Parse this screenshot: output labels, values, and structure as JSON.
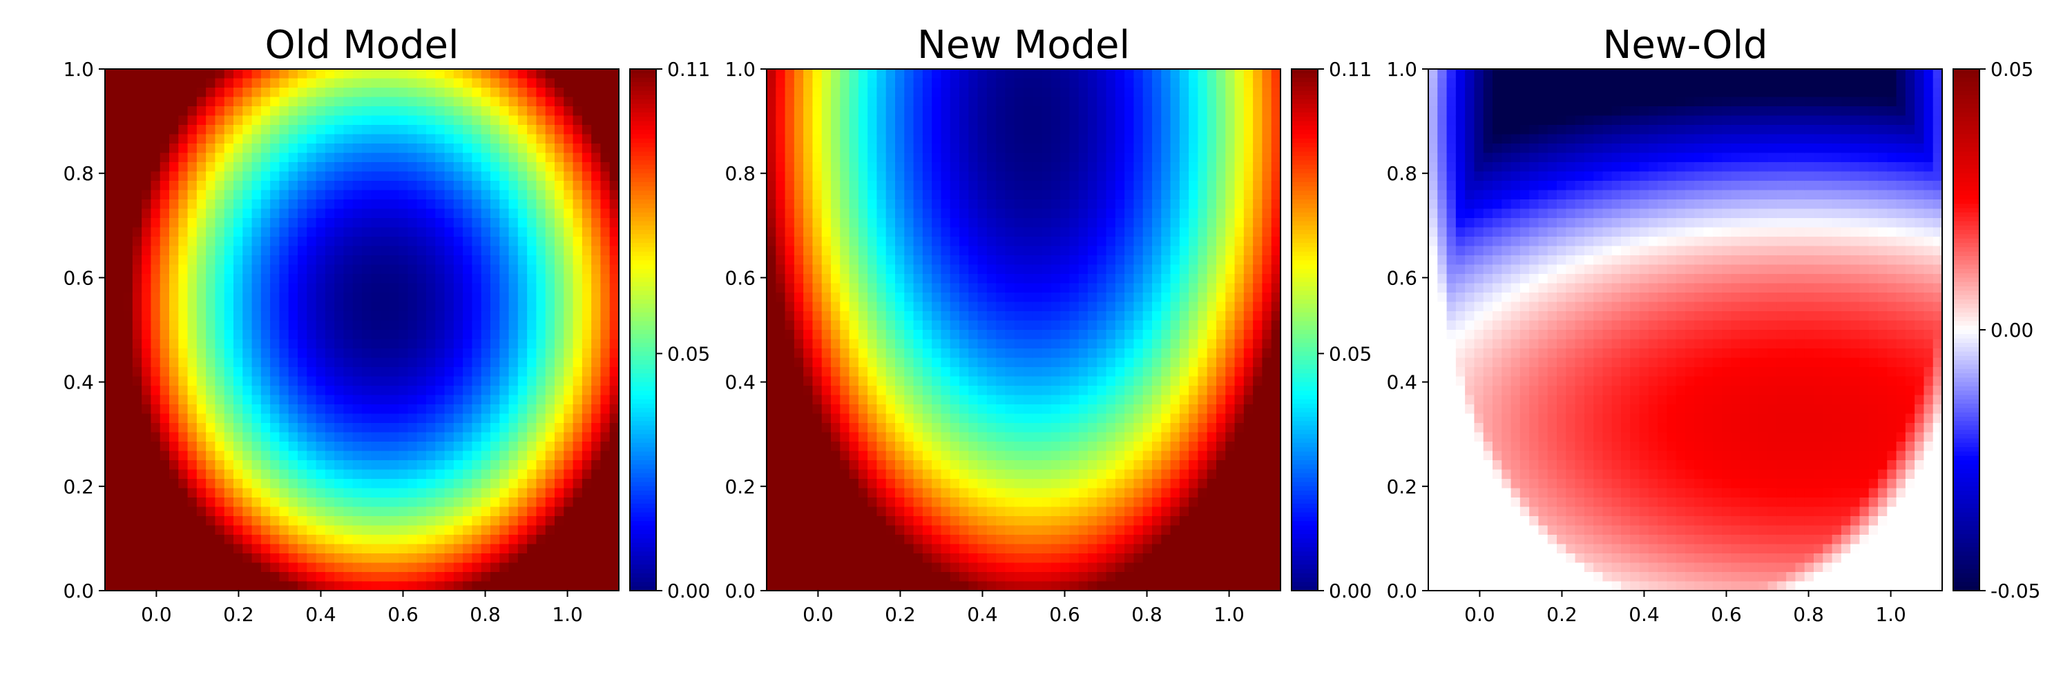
{
  "chart_data": [
    {
      "type": "heatmap",
      "title": "Old Model",
      "colormap": "jet",
      "xlim": [
        -0.125,
        1.125
      ],
      "ylim": [
        0,
        1
      ],
      "x_ticks": [
        "0.0",
        "0.2",
        "0.4",
        "0.6",
        "0.8",
        "1.0"
      ],
      "y_ticks": [
        "0.0",
        "0.2",
        "0.4",
        "0.6",
        "0.8",
        "1.0"
      ],
      "colorbar": {
        "range": [
          0,
          0.11
        ],
        "ticks": [
          "0.00",
          "0.05",
          "0.11"
        ]
      },
      "field": {
        "kind": "bowl",
        "cx": 0.55,
        "cy": 0.55,
        "sx": 0.62,
        "sy": 0.58,
        "vmin": 0.0,
        "vmax": 0.11
      }
    },
    {
      "type": "heatmap",
      "title": "New Model",
      "colormap": "jet",
      "xlim": [
        -0.125,
        1.125
      ],
      "ylim": [
        0,
        1
      ],
      "x_ticks": [
        "0.0",
        "0.2",
        "0.4",
        "0.6",
        "0.8",
        "1.0"
      ],
      "y_ticks": [
        "0.0",
        "0.2",
        "0.4",
        "0.6",
        "0.8",
        "1.0"
      ],
      "colorbar": {
        "range": [
          0,
          0.11
        ],
        "ticks": [
          "0.00",
          "0.05",
          "0.11"
        ]
      },
      "field": {
        "kind": "bowl",
        "cx": 0.52,
        "cy": 0.9,
        "sx": 0.66,
        "sy": 0.92,
        "vmin": 0.0,
        "vmax": 0.11
      }
    },
    {
      "type": "heatmap",
      "title": "New-Old",
      "colormap": "seismic",
      "xlim": [
        -0.125,
        1.125
      ],
      "ylim": [
        0,
        1
      ],
      "x_ticks": [
        "0.0",
        "0.2",
        "0.4",
        "0.6",
        "0.8",
        "1.0"
      ],
      "y_ticks": [
        "0.0",
        "0.2",
        "0.4",
        "0.6",
        "0.8",
        "1.0"
      ],
      "colorbar": {
        "range": [
          -0.05,
          0.05
        ],
        "ticks": [
          "-0.05",
          "0.00",
          "0.05"
        ]
      },
      "field": {
        "kind": "diff",
        "vmin": -0.05,
        "vmax": 0.05
      }
    }
  ]
}
